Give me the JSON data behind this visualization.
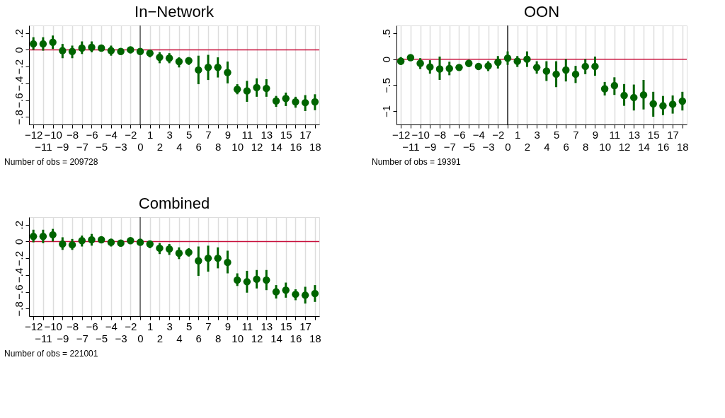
{
  "chart_data": [
    {
      "type": "scatter",
      "title": "In−Network",
      "marker": "circle",
      "grid": "x",
      "categories": [
        "−12",
        "−11",
        "−10",
        "−9",
        "−8",
        "−7",
        "−6",
        "−5",
        "−4",
        "−3",
        "−2",
        "0",
        "1",
        "2",
        "3",
        "4",
        "5",
        "6",
        "7",
        "8",
        "9",
        "10",
        "11",
        "12",
        "13",
        "14",
        "15",
        "16",
        "17",
        "18"
      ],
      "series": [
        {
          "color": "#006400",
          "values": [
            0.07,
            0.07,
            0.09,
            -0.01,
            -0.02,
            0.02,
            0.03,
            0.02,
            -0.01,
            -0.02,
            0.0,
            -0.02,
            -0.04,
            -0.09,
            -0.1,
            -0.14,
            -0.13,
            -0.24,
            -0.21,
            -0.21,
            -0.27,
            -0.47,
            -0.49,
            -0.45,
            -0.46,
            -0.61,
            -0.58,
            -0.62,
            -0.63,
            -0.62
          ],
          "errors": [
            [
              0.0,
              0.15
            ],
            [
              -0.01,
              0.15
            ],
            [
              0.01,
              0.17
            ],
            [
              -0.1,
              0.07
            ],
            [
              -0.1,
              0.05
            ],
            [
              -0.05,
              0.1
            ],
            [
              -0.03,
              0.1
            ],
            [
              -0.01,
              0.06
            ],
            [
              -0.07,
              0.05
            ],
            [
              -0.05,
              0.02
            ],
            [
              -0.04,
              0.03
            ],
            [
              -0.06,
              0.02
            ],
            [
              -0.09,
              -0.01
            ],
            [
              -0.16,
              -0.03
            ],
            [
              -0.16,
              -0.04
            ],
            [
              -0.21,
              -0.09
            ],
            [
              -0.18,
              -0.09
            ],
            [
              -0.41,
              -0.07
            ],
            [
              -0.36,
              -0.06
            ],
            [
              -0.33,
              -0.09
            ],
            [
              -0.4,
              -0.14
            ],
            [
              -0.53,
              -0.41
            ],
            [
              -0.62,
              -0.37
            ],
            [
              -0.56,
              -0.34
            ],
            [
              -0.56,
              -0.35
            ],
            [
              -0.68,
              -0.55
            ],
            [
              -0.67,
              -0.51
            ],
            [
              -0.69,
              -0.56
            ],
            [
              -0.73,
              -0.54
            ],
            [
              -0.72,
              -0.53
            ]
          ]
        }
      ],
      "ylim": [
        -0.89,
        0.29
      ],
      "yticks": [
        {
          "value": -0.8,
          "label": "−.8"
        },
        {
          "value": -0.6,
          "label": "−.6"
        },
        {
          "value": -0.4,
          "label": "−.4"
        },
        {
          "value": -0.2,
          "label": "−.2"
        },
        0,
        {
          "value": 0.2,
          "label": ".2"
        }
      ],
      "ref_lines": [
        {
          "axis": "y",
          "value": 0,
          "color": "#c8103c"
        },
        {
          "axis": "x",
          "value": "0",
          "color": "#555555"
        }
      ],
      "annotations": [
        "Number of obs = 209728"
      ]
    },
    {
      "type": "scatter",
      "title": "OON",
      "marker": "circle",
      "grid": "x",
      "categories": [
        "−12",
        "−11",
        "−10",
        "−9",
        "−8",
        "−7",
        "−6",
        "−5",
        "−4",
        "−3",
        "−2",
        "0",
        "1",
        "2",
        "3",
        "4",
        "5",
        "6",
        "7",
        "8",
        "9",
        "10",
        "11",
        "12",
        "13",
        "14",
        "15",
        "16",
        "17",
        "18"
      ],
      "series": [
        {
          "color": "#006400",
          "values": [
            -0.04,
            0.03,
            -0.08,
            -0.15,
            -0.19,
            -0.18,
            -0.16,
            -0.08,
            -0.14,
            -0.13,
            -0.06,
            0.02,
            -0.04,
            0.0,
            -0.16,
            -0.23,
            -0.29,
            -0.21,
            -0.29,
            -0.14,
            -0.14,
            -0.57,
            -0.51,
            -0.7,
            -0.74,
            -0.69,
            -0.86,
            -0.9,
            -0.87,
            -0.81
          ],
          "errors": [
            [
              -0.11,
              0.04
            ],
            [
              0.0,
              0.06
            ],
            [
              -0.19,
              0.02
            ],
            [
              -0.28,
              -0.02
            ],
            [
              -0.4,
              0.05
            ],
            [
              -0.31,
              -0.05
            ],
            [
              -0.22,
              -0.1
            ],
            [
              -0.15,
              -0.02
            ],
            [
              -0.21,
              -0.08
            ],
            [
              -0.23,
              -0.04
            ],
            [
              -0.18,
              0.06
            ],
            [
              -0.11,
              0.15
            ],
            [
              -0.15,
              0.06
            ],
            [
              -0.15,
              0.15
            ],
            [
              -0.28,
              -0.04
            ],
            [
              -0.42,
              -0.04
            ],
            [
              -0.54,
              -0.04
            ],
            [
              -0.43,
              0.0
            ],
            [
              -0.46,
              -0.13
            ],
            [
              -0.29,
              0.0
            ],
            [
              -0.32,
              0.05
            ],
            [
              -0.7,
              -0.44
            ],
            [
              -0.69,
              -0.35
            ],
            [
              -0.9,
              -0.48
            ],
            [
              -0.99,
              -0.49
            ],
            [
              -0.97,
              -0.4
            ],
            [
              -1.11,
              -0.63
            ],
            [
              -1.08,
              -0.71
            ],
            [
              -1.05,
              -0.7
            ],
            [
              -0.99,
              -0.63
            ]
          ]
        }
      ],
      "ylim": [
        -1.26,
        0.65
      ],
      "yticks": [
        {
          "value": -1,
          "label": "−1"
        },
        {
          "value": -0.5,
          "label": "−.5"
        },
        0,
        {
          "value": 0.5,
          "label": ".5"
        }
      ],
      "ref_lines": [
        {
          "axis": "y",
          "value": 0,
          "color": "#c8103c"
        },
        {
          "axis": "x",
          "value": "0",
          "color": "#222222"
        }
      ],
      "annotations": [
        "Number of obs = 19391"
      ]
    },
    {
      "type": "scatter",
      "title": "Combined",
      "marker": "circle",
      "grid": "x",
      "categories": [
        "−12",
        "−11",
        "−10",
        "−9",
        "−8",
        "−7",
        "−6",
        "−5",
        "−4",
        "−3",
        "−2",
        "0",
        "1",
        "2",
        "3",
        "4",
        "5",
        "6",
        "7",
        "8",
        "9",
        "10",
        "11",
        "12",
        "13",
        "14",
        "15",
        "16",
        "17",
        "18"
      ],
      "series": [
        {
          "color": "#006400",
          "values": [
            0.06,
            0.06,
            0.08,
            -0.03,
            -0.04,
            0.01,
            0.02,
            0.02,
            -0.01,
            -0.02,
            0.01,
            -0.01,
            -0.03,
            -0.08,
            -0.09,
            -0.14,
            -0.13,
            -0.23,
            -0.2,
            -0.2,
            -0.25,
            -0.46,
            -0.48,
            -0.45,
            -0.46,
            -0.6,
            -0.58,
            -0.63,
            -0.64,
            -0.62
          ],
          "errors": [
            [
              -0.01,
              0.14
            ],
            [
              -0.02,
              0.14
            ],
            [
              0.0,
              0.15
            ],
            [
              -0.1,
              0.05
            ],
            [
              -0.1,
              0.03
            ],
            [
              -0.06,
              0.07
            ],
            [
              -0.05,
              0.09
            ],
            [
              -0.01,
              0.05
            ],
            [
              -0.06,
              0.03
            ],
            [
              -0.06,
              0.01
            ],
            [
              -0.03,
              0.04
            ],
            [
              -0.04,
              0.03
            ],
            [
              -0.08,
              0.01
            ],
            [
              -0.15,
              -0.02
            ],
            [
              -0.16,
              -0.03
            ],
            [
              -0.21,
              -0.07
            ],
            [
              -0.18,
              -0.08
            ],
            [
              -0.41,
              -0.06
            ],
            [
              -0.36,
              -0.05
            ],
            [
              -0.32,
              -0.07
            ],
            [
              -0.38,
              -0.11
            ],
            [
              -0.53,
              -0.38
            ],
            [
              -0.61,
              -0.35
            ],
            [
              -0.56,
              -0.34
            ],
            [
              -0.58,
              -0.34
            ],
            [
              -0.68,
              -0.52
            ],
            [
              -0.67,
              -0.49
            ],
            [
              -0.7,
              -0.57
            ],
            [
              -0.74,
              -0.54
            ],
            [
              -0.72,
              -0.52
            ]
          ]
        }
      ],
      "ylim": [
        -0.89,
        0.29
      ],
      "yticks": [
        {
          "value": -0.8,
          "label": "−.8"
        },
        {
          "value": -0.6,
          "label": "−.6"
        },
        {
          "value": -0.4,
          "label": "−.4"
        },
        {
          "value": -0.2,
          "label": "−.2"
        },
        0,
        {
          "value": 0.2,
          "label": ".2"
        }
      ],
      "ref_lines": [
        {
          "axis": "y",
          "value": 0,
          "color": "#c8103c"
        },
        {
          "axis": "x",
          "value": "0",
          "color": "#555555"
        }
      ],
      "annotations": [
        "Number of obs = 221001"
      ]
    }
  ]
}
